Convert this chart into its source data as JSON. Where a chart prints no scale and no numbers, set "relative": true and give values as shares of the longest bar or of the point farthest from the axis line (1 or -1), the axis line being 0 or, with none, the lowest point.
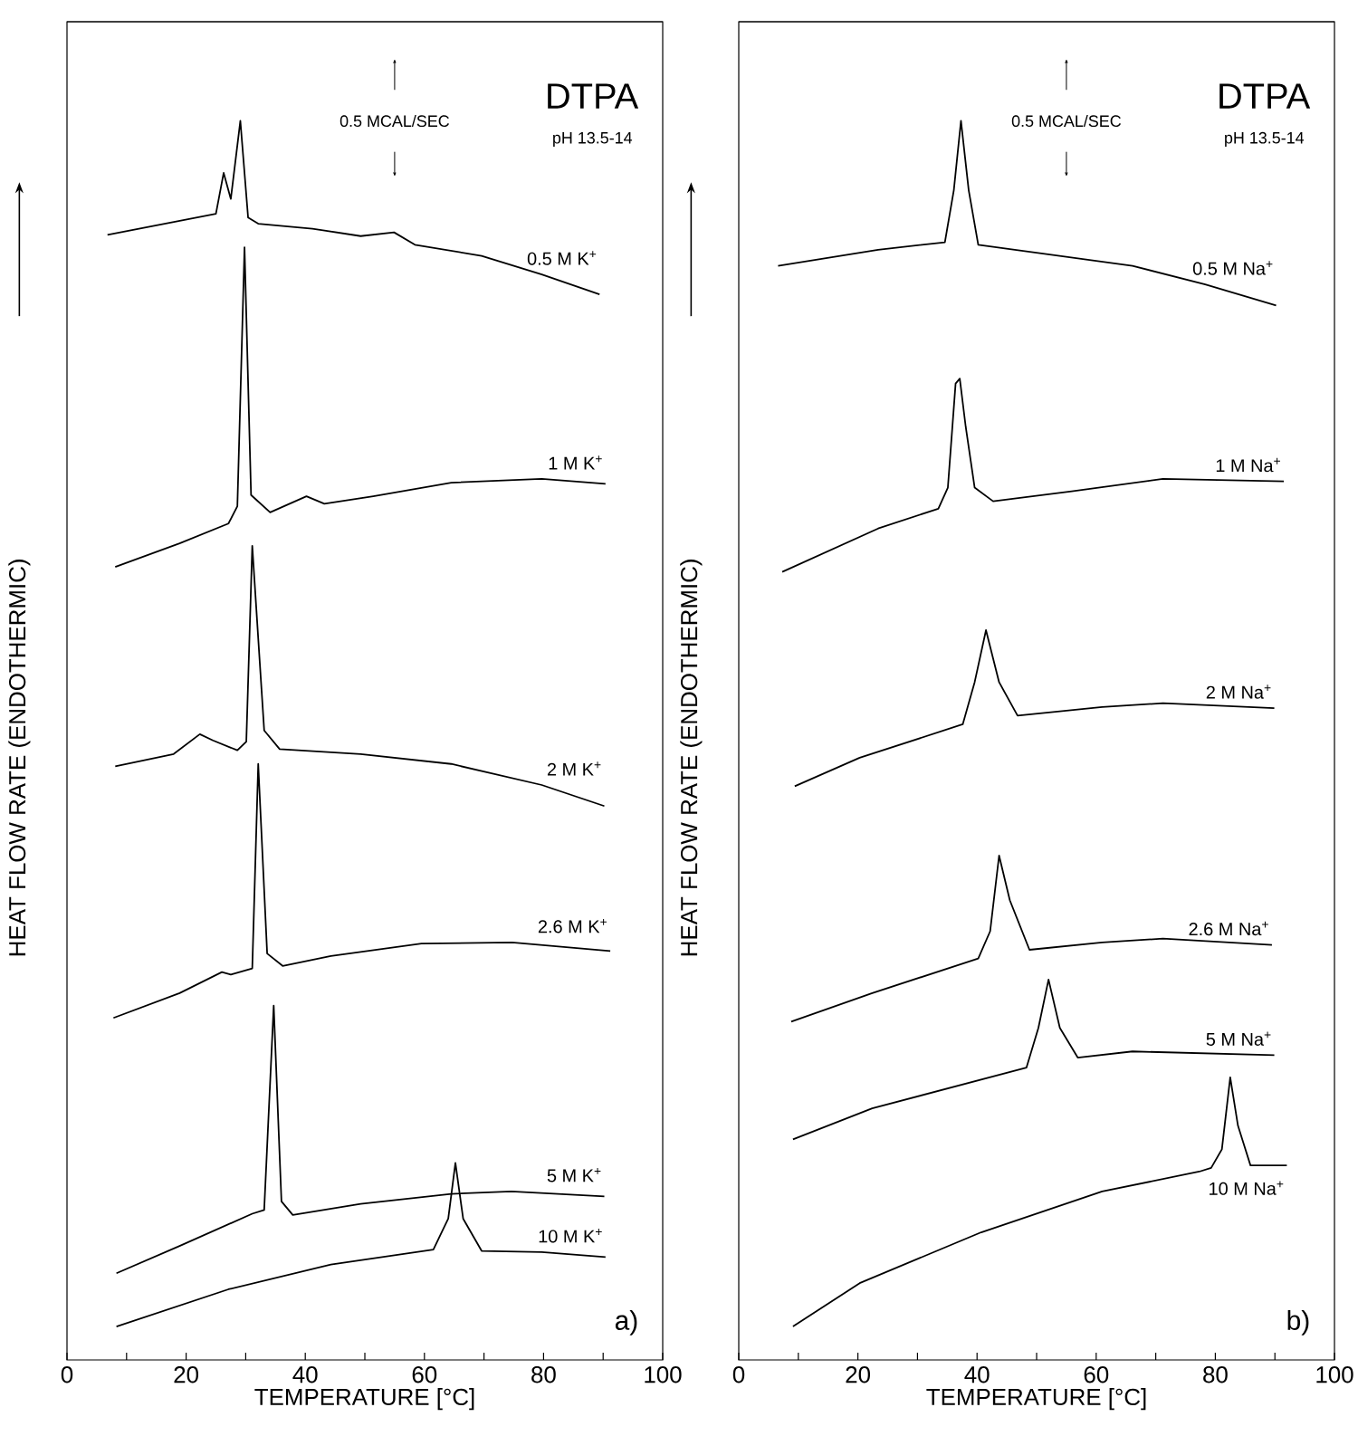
{
  "chart_data": [
    {
      "type": "line",
      "title": "DTPA",
      "xlabel": "TEMPERATURE [°C]",
      "ylabel": "HEAT FLOW RATE (ENDOTHERMIC)",
      "annotations": [
        "0.5 MCAL/SEC",
        "pH 13.5-14",
        "a)"
      ],
      "xlim": [
        0,
        100
      ],
      "xticks": [
        0,
        {
          "value": 10,
          "label": null
        },
        20,
        {
          "value": 30,
          "label": null
        },
        40,
        {
          "value": 50,
          "label": null
        },
        60,
        {
          "value": 70,
          "label": null
        },
        80,
        {
          "value": 90,
          "label": null
        },
        100
      ],
      "relative": true,
      "series": [
        {
          "name": "0.5 M K$^{+}$",
          "color": "#000000",
          "x": [
            6.8,
            25.0,
            26.3,
            27.5,
            29.1,
            30.4,
            32.1,
            41.2,
            49.3,
            54.9,
            58.4,
            69.6,
            79.7,
            89.4
          ],
          "values": [
            0.908,
            0.925,
            0.958,
            0.937,
            1.0,
            0.922,
            0.917,
            0.913,
            0.907,
            0.91,
            0.9,
            0.891,
            0.876,
            0.86
          ]
        },
        {
          "name": "1 M K$^{+}$",
          "color": "#000000",
          "x": [
            8.1,
            18.9,
            27.1,
            28.6,
            29.8,
            30.9,
            34.1,
            40.2,
            43.2,
            51.4,
            64.5,
            79.7,
            90.4
          ],
          "values": [
            0.64,
            0.659,
            0.675,
            0.689,
            0.898,
            0.698,
            0.684,
            0.697,
            0.691,
            0.697,
            0.708,
            0.711,
            0.707
          ]
        },
        {
          "name": "2 M K$^{+}$",
          "color": "#000000",
          "x": [
            8.1,
            17.9,
            22.3,
            24.5,
            28.6,
            30.1,
            31.1,
            33.1,
            35.7,
            49.3,
            64.5,
            79.7,
            90.2
          ],
          "values": [
            0.479,
            0.489,
            0.505,
            0.5,
            0.492,
            0.499,
            0.657,
            0.508,
            0.493,
            0.489,
            0.481,
            0.464,
            0.447
          ]
        },
        {
          "name": "2.6 M K$^{+}$",
          "color": "#000000",
          "x": [
            7.8,
            18.9,
            26.0,
            27.5,
            31.1,
            32.1,
            33.6,
            36.2,
            44.3,
            59.5,
            74.7,
            91.2
          ],
          "values": [
            0.276,
            0.296,
            0.313,
            0.311,
            0.316,
            0.481,
            0.328,
            0.318,
            0.326,
            0.336,
            0.337,
            0.33
          ]
        },
        {
          "name": "5 M K$^{+}$",
          "color": "#000000",
          "x": [
            8.3,
            18.9,
            31.1,
            33.1,
            34.7,
            36.0,
            37.9,
            49.3,
            64.5,
            74.6,
            90.2
          ],
          "values": [
            0.07,
            0.092,
            0.118,
            0.121,
            0.286,
            0.128,
            0.117,
            0.126,
            0.134,
            0.136,
            0.132
          ]
        },
        {
          "name": "10 M K$^{+}$",
          "color": "#000000",
          "x": [
            8.3,
            27.1,
            44.3,
            61.5,
            64.0,
            65.2,
            66.5,
            69.6,
            79.7,
            90.4
          ],
          "values": [
            0.027,
            0.057,
            0.077,
            0.089,
            0.114,
            0.159,
            0.114,
            0.088,
            0.087,
            0.083
          ]
        }
      ]
    },
    {
      "type": "line",
      "title": "DTPA",
      "xlabel": "TEMPERATURE [°C]",
      "ylabel": "HEAT FLOW RATE (ENDOTHERMIC)",
      "annotations": [
        "0.5 MCAL/SEC",
        "pH 13.5-14",
        "b)"
      ],
      "xlim": [
        0,
        100
      ],
      "xticks": [
        0,
        {
          "value": 10,
          "label": null
        },
        20,
        {
          "value": 30,
          "label": null
        },
        40,
        {
          "value": 50,
          "label": null
        },
        60,
        {
          "value": 70,
          "label": null
        },
        80,
        {
          "value": 90,
          "label": null
        },
        100
      ],
      "relative": true,
      "series": [
        {
          "name": "0.5 M Na$^{+}$",
          "color": "#000000",
          "x": [
            6.6,
            23.4,
            34.6,
            36.1,
            37.3,
            38.6,
            40.2,
            50.8,
            66.1,
            78.3,
            90.2
          ],
          "values": [
            0.883,
            0.896,
            0.902,
            0.944,
            1.0,
            0.944,
            0.9,
            0.893,
            0.883,
            0.868,
            0.851
          ]
        },
        {
          "name": "1 M Na$^{+}$",
          "color": "#000000",
          "x": [
            7.3,
            23.4,
            33.5,
            35.1,
            36.4,
            37.1,
            38.1,
            39.6,
            42.7,
            55.9,
            71.2,
            91.5
          ],
          "values": [
            0.636,
            0.671,
            0.687,
            0.704,
            0.788,
            0.792,
            0.753,
            0.704,
            0.693,
            0.701,
            0.711,
            0.709
          ]
        },
        {
          "name": "2 M Na$^{+}$",
          "color": "#000000",
          "x": [
            9.4,
            20.3,
            37.6,
            39.6,
            41.5,
            43.7,
            46.8,
            61.0,
            71.2,
            89.9
          ],
          "values": [
            0.463,
            0.486,
            0.513,
            0.547,
            0.589,
            0.547,
            0.52,
            0.527,
            0.53,
            0.526
          ]
        },
        {
          "name": "2.6 M Na$^{+}$",
          "color": "#000000",
          "x": [
            8.8,
            22.4,
            40.2,
            42.2,
            43.7,
            45.5,
            48.8,
            61.0,
            71.2,
            89.5
          ],
          "values": [
            0.273,
            0.296,
            0.324,
            0.346,
            0.407,
            0.371,
            0.331,
            0.337,
            0.34,
            0.335
          ]
        },
        {
          "name": "5 M Na$^{+}$",
          "color": "#000000",
          "x": [
            9.1,
            22.4,
            48.3,
            50.3,
            52.0,
            53.9,
            56.9,
            66.1,
            89.9
          ],
          "values": [
            0.178,
            0.203,
            0.236,
            0.268,
            0.307,
            0.268,
            0.244,
            0.249,
            0.246
          ]
        },
        {
          "name": "10 M Na$^{+}$",
          "color": "#000000",
          "x": [
            9.1,
            20.3,
            40.7,
            61.0,
            77.3,
            79.3,
            81.1,
            82.5,
            83.8,
            85.9,
            92.0
          ],
          "values": [
            0.027,
            0.062,
            0.103,
            0.136,
            0.152,
            0.155,
            0.17,
            0.228,
            0.189,
            0.157,
            0.157
          ]
        }
      ]
    }
  ]
}
